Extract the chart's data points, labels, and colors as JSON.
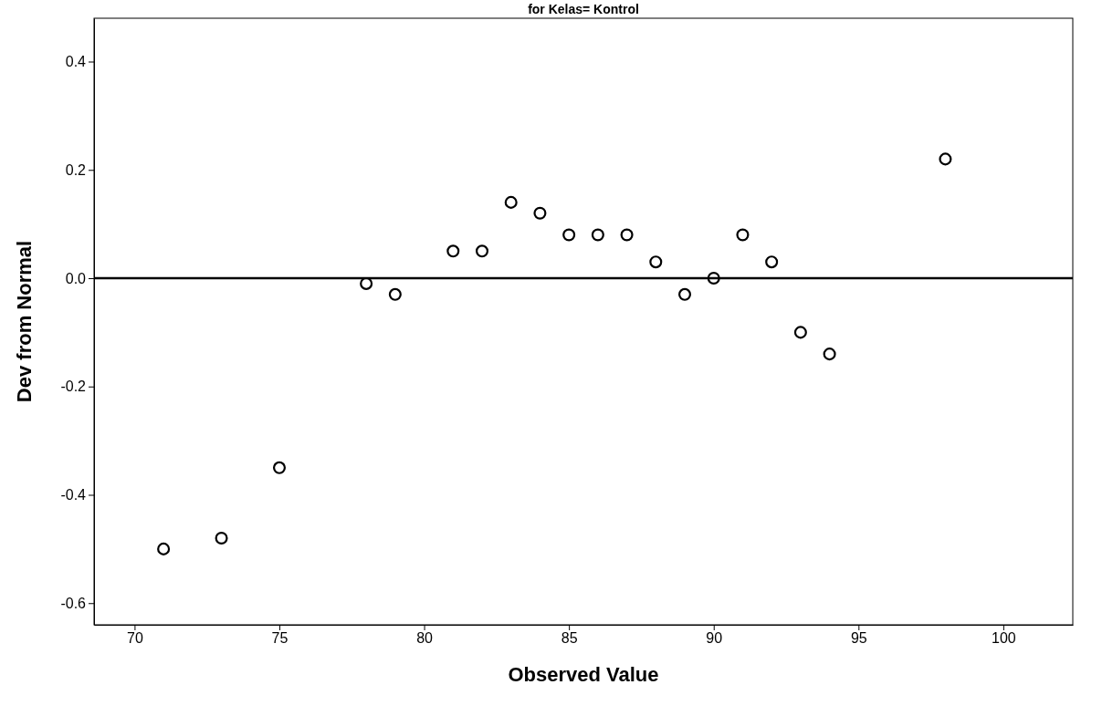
{
  "chart_data": {
    "type": "scatter",
    "title": "for Kelas= Kontrol",
    "xlabel": "Observed Value",
    "ylabel": "Dev from Normal",
    "x": [
      71,
      73,
      75,
      78,
      79,
      81,
      82,
      83,
      84,
      85,
      86,
      87,
      88,
      89,
      90,
      91,
      92,
      93,
      94,
      98
    ],
    "values": [
      -0.5,
      -0.48,
      -0.35,
      -0.01,
      -0.03,
      0.05,
      0.05,
      0.14,
      0.12,
      0.08,
      0.08,
      0.08,
      0.03,
      -0.03,
      0.0,
      0.08,
      0.03,
      -0.1,
      -0.14,
      0.22
    ],
    "color": "#000000",
    "marker": "circle",
    "xlim": [
      68.6,
      102.4
    ],
    "xticks": [
      70,
      75,
      80,
      85,
      90,
      95,
      100
    ],
    "ylim": [
      -0.64,
      0.48
    ],
    "yticks": [
      {
        "value": -0.6,
        "label": "-0.6"
      },
      {
        "value": -0.4,
        "label": "-0.4"
      },
      {
        "value": -0.2,
        "label": "-0.2"
      },
      {
        "value": 0,
        "label": "0.0"
      },
      {
        "value": 0.2,
        "label": "0.2"
      },
      {
        "value": 0.4,
        "label": "0.4"
      }
    ],
    "ref_lines": [
      {
        "axis": "y",
        "value": 0,
        "color": "#000000"
      }
    ],
    "grid": false
  }
}
